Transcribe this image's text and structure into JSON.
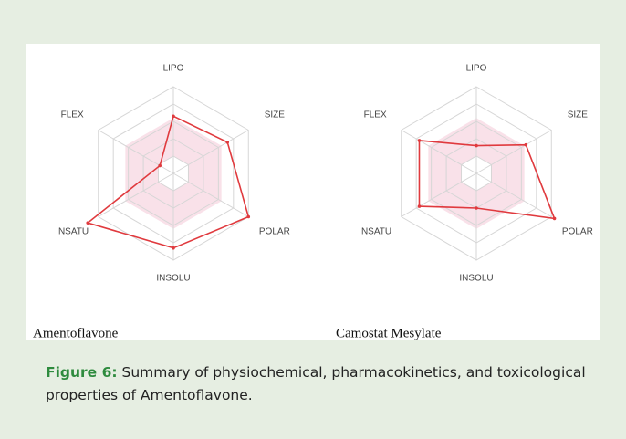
{
  "chart_data": [
    {
      "type": "radar",
      "name": "Amentoflavone",
      "axes": [
        "LIPO",
        "SIZE",
        "POLAR",
        "INSOLU",
        "INSATU",
        "FLEX"
      ],
      "values": [
        3.3,
        3.6,
        5.0,
        4.3,
        5.7,
        0.9
      ],
      "color": "#e03a3e",
      "rlim": [
        0,
        5
      ],
      "rticks": [
        1,
        2,
        3,
        4,
        5
      ],
      "optimal_range": [
        1,
        3.2
      ],
      "range_color": "#f8d9e3"
    },
    {
      "type": "radar",
      "name": "Camostat Mesylate",
      "axes": [
        "LIPO",
        "SIZE",
        "POLAR",
        "INSOLU",
        "INSATU",
        "FLEX"
      ],
      "values": [
        1.6,
        3.3,
        5.2,
        2.0,
        3.8,
        3.8
      ],
      "color": "#e03a3e",
      "rlim": [
        0,
        5
      ],
      "rticks": [
        1,
        2,
        3,
        4,
        5
      ],
      "optimal_range": [
        1,
        3.2
      ],
      "range_color": "#f8d9e3"
    }
  ],
  "caption": {
    "label": "Figure 6:",
    "text": "Summary of physiochemical, pharmacokinetics, and toxicological properties of Amentoflavone."
  }
}
